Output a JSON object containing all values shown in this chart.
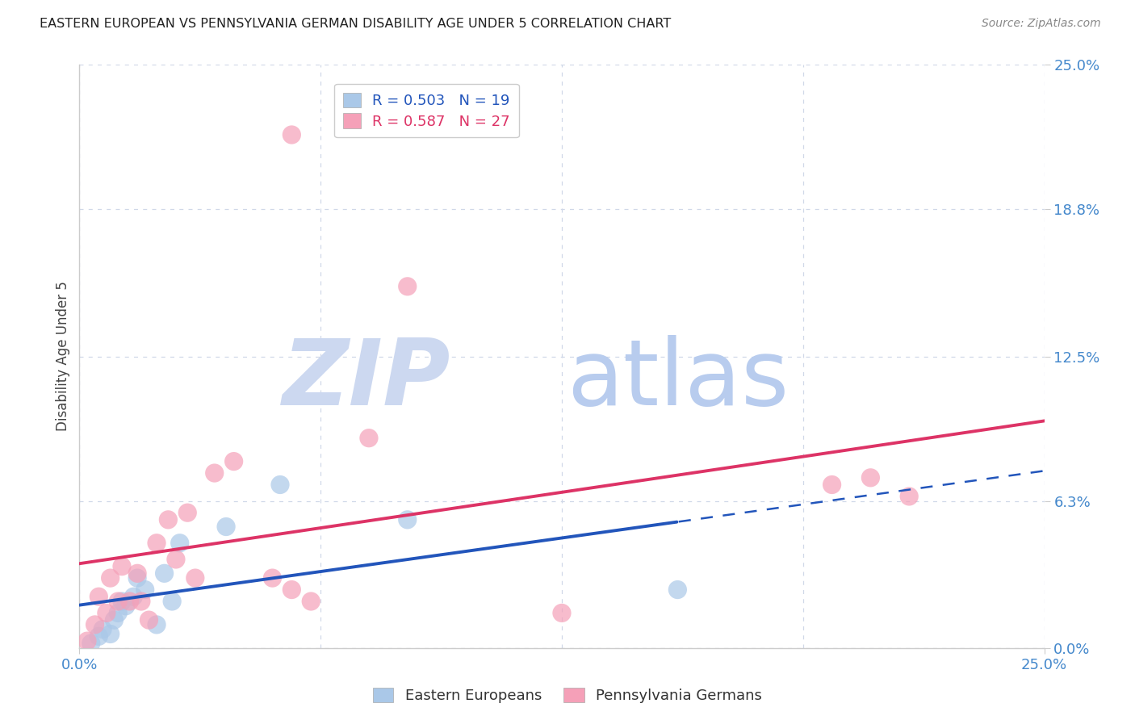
{
  "title": "EASTERN EUROPEAN VS PENNSYLVANIA GERMAN DISABILITY AGE UNDER 5 CORRELATION CHART",
  "source": "Source: ZipAtlas.com",
  "ylabel": "Disability Age Under 5",
  "y_tick_positions": [
    0.0,
    6.3,
    12.5,
    18.8,
    25.0
  ],
  "y_tick_labels": [
    "0.0%",
    "6.3%",
    "12.5%",
    "18.8%",
    "25.0%"
  ],
  "xlim": [
    0.0,
    25.0
  ],
  "ylim": [
    0.0,
    25.0
  ],
  "eastern_european_R": 0.503,
  "eastern_european_N": 19,
  "pennsylvania_german_R": 0.587,
  "pennsylvania_german_N": 27,
  "ee_color": "#aac8e8",
  "pg_color": "#f5a0b8",
  "ee_line_color": "#2255bb",
  "pg_line_color": "#dd3366",
  "background_color": "#ffffff",
  "grid_color": "#d0d8e8",
  "title_color": "#222222",
  "source_color": "#888888",
  "axis_label_color": "#444444",
  "tick_label_color": "#4488cc",
  "watermark_zip": "ZIP",
  "watermark_atlas": "atlas",
  "watermark_color_zip": "#ccd8f0",
  "watermark_color_atlas": "#b8ccee",
  "ee_x": [
    0.3,
    0.5,
    0.6,
    0.8,
    0.9,
    1.0,
    1.1,
    1.2,
    1.4,
    1.5,
    1.7,
    2.0,
    2.2,
    2.4,
    2.6,
    3.8,
    5.2,
    8.5,
    15.5
  ],
  "ee_y": [
    0.2,
    0.5,
    0.8,
    0.6,
    1.2,
    1.5,
    2.0,
    1.8,
    2.2,
    3.0,
    2.5,
    1.0,
    3.2,
    2.0,
    4.5,
    5.2,
    7.0,
    5.5,
    2.5
  ],
  "pg_x": [
    0.2,
    0.4,
    0.5,
    0.7,
    0.8,
    1.0,
    1.1,
    1.3,
    1.5,
    1.6,
    1.8,
    2.0,
    2.3,
    2.5,
    2.8,
    3.0,
    3.5,
    4.0,
    5.0,
    5.5,
    6.0,
    7.5,
    8.5,
    12.5,
    19.5,
    20.5,
    21.5
  ],
  "pg_y": [
    0.3,
    1.0,
    2.2,
    1.5,
    3.0,
    2.0,
    3.5,
    2.0,
    3.2,
    2.0,
    1.2,
    4.5,
    5.5,
    3.8,
    5.8,
    3.0,
    7.5,
    8.0,
    3.0,
    2.5,
    2.0,
    9.0,
    15.5,
    1.5,
    7.0,
    7.3,
    6.5
  ],
  "pg_outlier_x": 5.5,
  "pg_outlier_y": 22.0,
  "ee_line_solid_end": 15.5,
  "pg_line_full": true,
  "legend_ee_label": "R = 0.503   N = 19",
  "legend_pg_label": "R = 0.587   N = 27",
  "bottom_legend_ee": "Eastern Europeans",
  "bottom_legend_pg": "Pennsylvania Germans"
}
